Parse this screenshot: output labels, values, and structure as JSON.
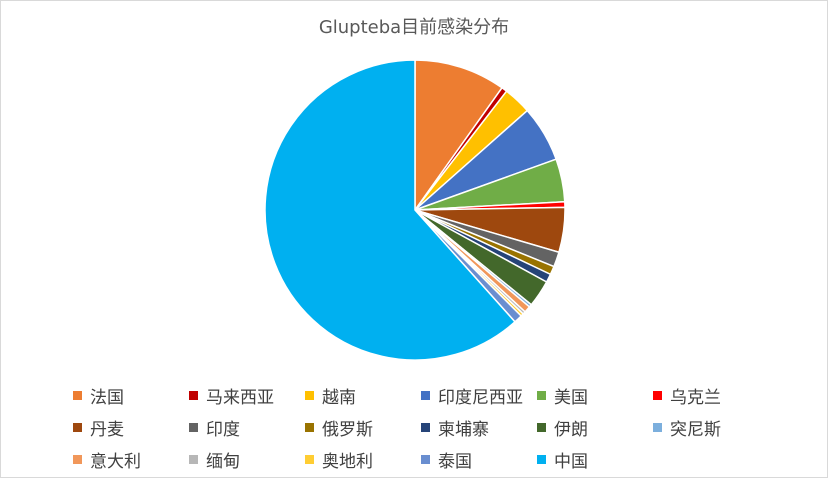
{
  "chart_data": {
    "type": "pie",
    "title": "Glupteba目前感染分布",
    "legend_position": "bottom",
    "categories": [
      "法国",
      "马来西亚",
      "越南",
      "印度尼西亚",
      "美国",
      "乌克兰",
      "丹麦",
      "印度",
      "俄罗斯",
      "柬埔寨",
      "伊朗",
      "突尼斯",
      "意大利",
      "缅甸",
      "奥地利",
      "泰国",
      "中国"
    ],
    "values": [
      9.8,
      0.6,
      3.0,
      6.0,
      4.6,
      0.6,
      4.8,
      1.6,
      0.9,
      0.9,
      2.9,
      0.3,
      0.7,
      0.3,
      0.3,
      0.9,
      61.3
    ],
    "colors": [
      "#ed7d31",
      "#c00000",
      "#ffc000",
      "#4472c4",
      "#70ad47",
      "#ff0000",
      "#9e480e",
      "#636363",
      "#997300",
      "#264478",
      "#43682b",
      "#7cafdd",
      "#f1975a",
      "#b7b7b7",
      "#ffcd33",
      "#698ed0",
      "#00b0f0"
    ]
  }
}
